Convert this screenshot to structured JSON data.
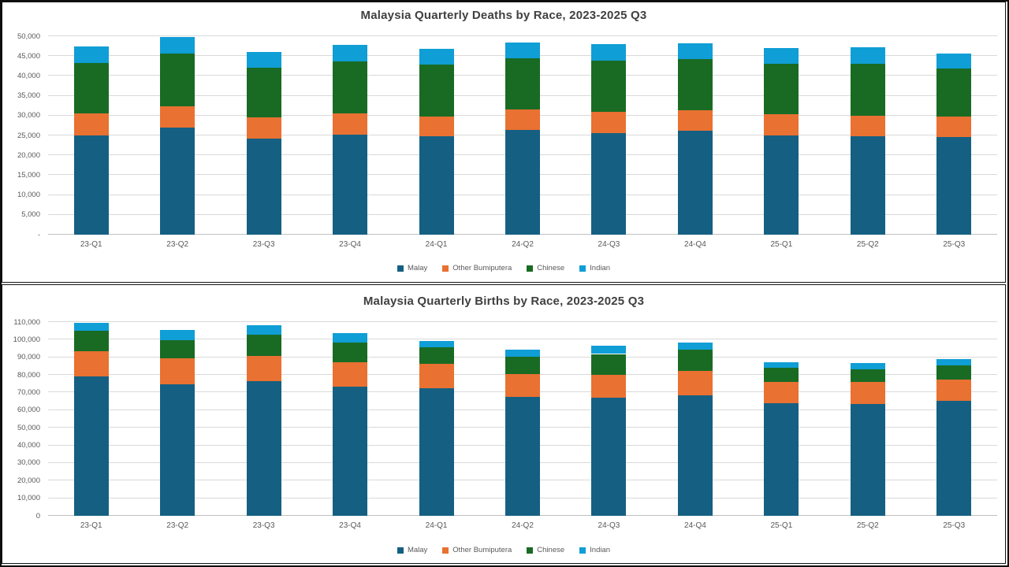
{
  "page": {
    "background": "#ffffff",
    "frame_border_color": "#0d0d0d",
    "gridline_color": "#d9d9d9",
    "text_color": "#595959",
    "title_color": "#404040"
  },
  "chart_data": [
    {
      "type": "bar",
      "stacked": true,
      "title": "Malaysia Quarterly Deaths by Race, 2023-2025 Q3",
      "categories": [
        "23-Q1",
        "23-Q2",
        "23-Q3",
        "23-Q4",
        "24-Q1",
        "24-Q2",
        "24-Q3",
        "24-Q4",
        "25-Q1",
        "25-Q2",
        "25-Q3"
      ],
      "series": [
        {
          "name": "Malay",
          "color": "#156082",
          "values": [
            25100,
            27000,
            24300,
            25200,
            24900,
            26300,
            25500,
            26100,
            25000,
            24900,
            24700
          ]
        },
        {
          "name": "Other Bumiputera",
          "color": "#E97132",
          "values": [
            5500,
            5300,
            5300,
            5300,
            4900,
            5200,
            5500,
            5300,
            5300,
            5000,
            5000
          ]
        },
        {
          "name": "Chinese",
          "color": "#196B24",
          "values": [
            12600,
            13300,
            12400,
            13100,
            13000,
            12900,
            12900,
            12900,
            12700,
            13200,
            12100
          ]
        },
        {
          "name": "Indian",
          "color": "#0F9ED5",
          "values": [
            4200,
            4200,
            4000,
            4200,
            4100,
            4100,
            4100,
            3900,
            4100,
            4200,
            3900
          ]
        }
      ],
      "totals": [
        47400,
        49800,
        46000,
        47800,
        46900,
        48500,
        48000,
        48200,
        47100,
        47300,
        45700
      ],
      "y_axis": {
        "min": 0,
        "max": 50000,
        "step": 5000,
        "tick_labels": [
          "-",
          "5,000",
          "10,000",
          "15,000",
          "20,000",
          "25,000",
          "30,000",
          "35,000",
          "40,000",
          "45,000",
          "50,000"
        ]
      },
      "legend": [
        "Malay",
        "Other Bumiputera",
        "Chinese",
        "Indian"
      ],
      "legend_position": "bottom",
      "grid": true
    },
    {
      "type": "bar",
      "stacked": true,
      "title": "Malaysia Quarterly Births by Race, 2023-2025 Q3",
      "categories": [
        "23-Q1",
        "23-Q2",
        "23-Q3",
        "23-Q4",
        "24-Q1",
        "24-Q2",
        "24-Q3",
        "24-Q4",
        "25-Q1",
        "25-Q2",
        "25-Q3"
      ],
      "series": [
        {
          "name": "Malay",
          "color": "#156082",
          "values": [
            79000,
            74900,
            76500,
            73300,
            72500,
            67400,
            67000,
            68500,
            64000,
            63500,
            65200
          ]
        },
        {
          "name": "Other Bumiputera",
          "color": "#E97132",
          "values": [
            14600,
            14400,
            14500,
            13900,
            13600,
            13200,
            13200,
            13900,
            12100,
            12600,
            12100
          ]
        },
        {
          "name": "Chinese",
          "color": "#196B24",
          "values": [
            11500,
            10400,
            11800,
            11300,
            9600,
            9800,
            11700,
            11800,
            7900,
            7300,
            7900
          ]
        },
        {
          "name": "Indian",
          "color": "#0F9ED5",
          "values": [
            4600,
            5700,
            5200,
            5300,
            3800,
            3800,
            4800,
            4200,
            3300,
            3300,
            4000
          ]
        }
      ],
      "totals": [
        109700,
        105400,
        108000,
        103800,
        99500,
        94200,
        96700,
        98400,
        87300,
        86700,
        89200
      ],
      "y_axis": {
        "min": 0,
        "max": 110000,
        "step": 10000,
        "tick_labels": [
          "0",
          "10,000",
          "20,000",
          "30,000",
          "40,000",
          "50,000",
          "60,000",
          "70,000",
          "80,000",
          "90,000",
          "100,000",
          "110,000"
        ]
      },
      "legend": [
        "Malay",
        "Other Bumiputera",
        "Chinese",
        "Indian"
      ],
      "legend_position": "bottom",
      "grid": true
    }
  ]
}
